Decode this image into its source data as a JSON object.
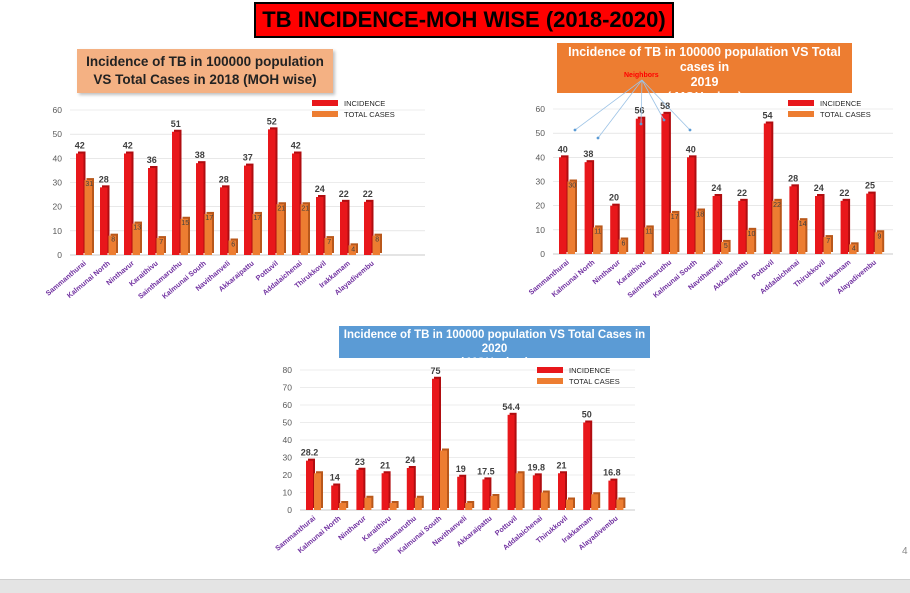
{
  "page_title": "TB INCIDENCE-MOH WISE (2018-2020)",
  "page_number": "4",
  "colors": {
    "incidence": "#e8171b",
    "incidence_dark": "#b00d10",
    "total_cases": "#ed7d31",
    "total_cases_dark": "#b9581b",
    "category_label": "#7030a0",
    "grid": "#d9d9d9",
    "axis_text": "#595959"
  },
  "annotation": {
    "text": "Neighbors",
    "targets": [
      "Sammanthurai",
      "Kalmunai North",
      "Karaithivu",
      "Sainthamaruthu",
      "Kalmunai South"
    ]
  },
  "chart_data": [
    {
      "type": "bar",
      "title_line1": "Incidence of TB in 100000 population",
      "title_line2": "VS Total Cases in 2018 (MOH wise)",
      "categories": [
        "Sammanthurai",
        "Kalmunai North",
        "Ninthavur",
        "Karaithivu",
        "Sainthamaruthu",
        "Kalmunai South",
        "Navithanveli",
        "Akkaraipattu",
        "Pottuvil",
        "Addalaichenai",
        "Thirukkovil",
        "Irakkamam",
        "Alayadivembu"
      ],
      "series": [
        {
          "name": "INCIDENCE",
          "values": [
            42,
            28,
            42,
            36,
            51,
            38,
            28,
            37,
            52,
            42,
            24,
            22,
            22
          ]
        },
        {
          "name": "TOTAL CASES",
          "values": [
            31,
            8,
            13,
            7,
            15,
            17,
            6,
            17,
            21,
            21,
            7,
            4,
            8
          ]
        }
      ],
      "incidence_labels": [
        "42",
        "28",
        "42",
        "36",
        "51",
        "38",
        "28",
        "37",
        "52",
        "42",
        "24",
        "22",
        "22"
      ],
      "cases_labels": [
        "31",
        "8",
        "13",
        "7",
        "15",
        "17",
        "6",
        "17",
        "21",
        "21",
        "7",
        "4",
        "8"
      ],
      "yticks": [
        0,
        10,
        20,
        30,
        40,
        50,
        60
      ],
      "ylim": [
        0,
        60
      ],
      "legend_position": "top-right"
    },
    {
      "type": "bar",
      "title_line1": "Incidence of TB in 100000 population VS Total cases in",
      "title_line2": "2019",
      "title_line3": "( MOH wise )",
      "categories": [
        "Sammanthurai",
        "Kalmunai North",
        "Ninthavur",
        "Karaithivu",
        "Sainthamaruthu",
        "Kalmunai South",
        "Navithanveli",
        "Akkaraipattu",
        "Pottuvil",
        "Addalaichenai",
        "Thirukkovil",
        "Irakkamam",
        "Alayadivembu"
      ],
      "series": [
        {
          "name": "INCIDENCE",
          "values": [
            40,
            38,
            20,
            56,
            58,
            40,
            24,
            22,
            54,
            28,
            24,
            22,
            25
          ]
        },
        {
          "name": "TOTAL CASES",
          "values": [
            30,
            11,
            6,
            11,
            17,
            18,
            5,
            10,
            22,
            14,
            7,
            4,
            9
          ]
        }
      ],
      "incidence_labels": [
        "40",
        "38",
        "20",
        "56",
        "58",
        "40",
        "24",
        "22",
        "54",
        "28",
        "24",
        "22",
        "25"
      ],
      "cases_labels": [
        "30",
        "11",
        "6",
        "11",
        "17",
        "18",
        "5",
        "10",
        "22",
        "14",
        "7",
        "4",
        "9"
      ],
      "yticks": [
        0,
        10,
        20,
        30,
        40,
        50,
        60
      ],
      "ylim": [
        0,
        60
      ],
      "legend_position": "top-right"
    },
    {
      "type": "bar",
      "title_line1": "Incidence of TB in 100000 population VS Total Cases in 2020",
      "title_line2": "( MOH wise )",
      "categories": [
        "Sammanthurai",
        "Kalmunai North",
        "Ninthavur",
        "Karaithivu",
        "Sainthamaruthu",
        "Kalmunai South",
        "Navithanveli",
        "Akkaraipattu",
        "Pottuvil",
        "Addalaichenai",
        "Thirukkovil",
        "Irakkamam",
        "Alayadivembu"
      ],
      "series": [
        {
          "name": "INCIDENCE",
          "values": [
            28.2,
            14,
            23,
            21,
            24,
            75,
            19,
            17.5,
            54.4,
            19.8,
            21,
            50,
            16.8
          ]
        },
        {
          "name": "TOTAL CASES",
          "values": [
            21,
            4,
            7,
            4,
            7,
            34,
            4,
            8,
            21,
            10,
            6,
            9,
            6
          ]
        }
      ],
      "incidence_labels": [
        "28.2",
        "14",
        "23",
        "21",
        "24",
        "75",
        "19",
        "17.5",
        "54.4",
        "19.8",
        "21",
        "50",
        "16.8"
      ],
      "cases_labels": [
        "",
        "",
        "",
        "",
        "",
        "",
        "",
        "",
        "",
        "",
        "",
        "",
        ""
      ],
      "yticks": [
        0,
        10,
        20,
        30,
        40,
        50,
        60,
        70,
        80
      ],
      "ylim": [
        0,
        80
      ],
      "legend_position": "top-right"
    }
  ]
}
